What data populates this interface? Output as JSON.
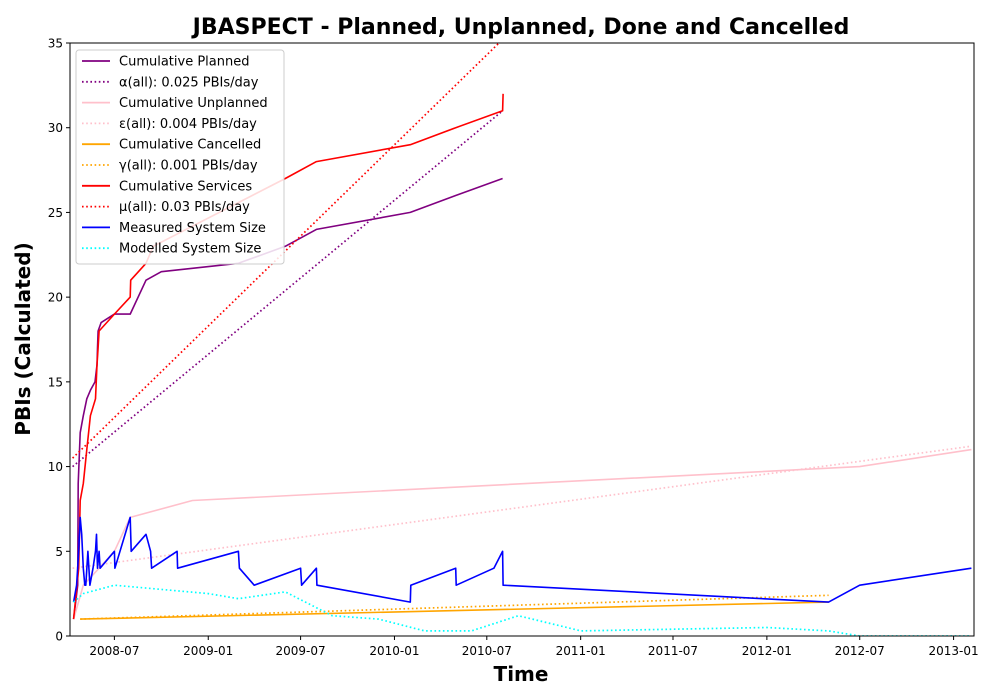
{
  "chart_data": {
    "type": "line",
    "title": "JBASPECT - Planned, Unplanned, Done  and Cancelled",
    "xlabel": "Time",
    "ylabel": "PBIs (Calculated)",
    "xlim": [
      "2008-04-05",
      "2013-02-10"
    ],
    "ylim": [
      0,
      35
    ],
    "x_ticks": [
      "2008-07",
      "2009-01",
      "2009-07",
      "2010-01",
      "2010-07",
      "2011-01",
      "2011-07",
      "2012-01",
      "2012-07",
      "2013-01"
    ],
    "y_ticks": [
      0,
      5,
      10,
      15,
      20,
      25,
      30,
      35
    ],
    "grid": false,
    "legend_position": "top-left",
    "series": [
      {
        "name": "Cumulative Planned",
        "color": "#800080",
        "style": "solid",
        "x": [
          "2008-04-12",
          "2008-04-20",
          "2008-04-21",
          "2008-04-25",
          "2008-05-01",
          "2008-05-08",
          "2008-05-15",
          "2008-05-24",
          "2008-05-28",
          "2008-05-29",
          "2008-05-30",
          "2008-06-05",
          "2008-07-01",
          "2008-08-01",
          "2008-09-01",
          "2008-10-01",
          "2009-03-01",
          "2009-06-01",
          "2009-08-01",
          "2010-02-01",
          "2010-05-01",
          "2010-08-01"
        ],
        "y": [
          1,
          3,
          9,
          12,
          13,
          14,
          14.5,
          15,
          16,
          17,
          18,
          18.5,
          19,
          19,
          21,
          21.5,
          22,
          23,
          24,
          25,
          26,
          27
        ]
      },
      {
        "name": "α(all): 0.025 PBIs/day",
        "color": "#800080",
        "style": "dotted",
        "x": [
          "2008-04-10",
          "2010-08-01"
        ],
        "y": [
          10,
          31
        ]
      },
      {
        "name": "Cumulative Unplanned",
        "color": "#ffc0cb",
        "style": "solid",
        "x": [
          "2008-04-12",
          "2008-05-01",
          "2008-06-01",
          "2008-07-01",
          "2008-08-01",
          "2008-12-01",
          "2012-07-01",
          "2013-02-05"
        ],
        "y": [
          1,
          3,
          4,
          5,
          7,
          8,
          10,
          11
        ]
      },
      {
        "name": "ε(all): 0.004 PBIs/day",
        "color": "#ffc0cb",
        "style": "dotted",
        "x": [
          "2008-04-10",
          "2013-02-05"
        ],
        "y": [
          4,
          11.2
        ]
      },
      {
        "name": "Cumulative Cancelled",
        "color": "#ffa500",
        "style": "solid",
        "x": [
          "2008-04-25",
          "2012-05-01"
        ],
        "y": [
          1,
          2
        ]
      },
      {
        "name": "γ(all): 0.001 PBIs/day",
        "color": "#ffa500",
        "style": "dotted",
        "x": [
          "2008-04-25",
          "2012-05-01"
        ],
        "y": [
          1,
          2.4
        ]
      },
      {
        "name": "Cumulative Services",
        "color": "#ff0000",
        "style": "solid",
        "x": [
          "2008-04-12",
          "2008-04-22",
          "2008-04-25",
          "2008-05-01",
          "2008-05-08",
          "2008-05-15",
          "2008-05-25",
          "2008-05-28",
          "2008-05-30",
          "2008-06-01",
          "2008-07-01",
          "2008-08-01",
          "2008-08-02",
          "2008-09-01",
          "2008-09-15",
          "2009-06-01",
          "2009-08-01",
          "2010-02-01",
          "2010-05-01",
          "2010-08-01",
          "2010-08-02"
        ],
        "y": [
          1,
          4,
          8,
          9,
          11,
          13,
          14,
          16,
          17,
          18,
          19,
          20,
          21,
          22,
          23,
          27,
          28,
          29,
          30,
          31,
          32
        ]
      },
      {
        "name": "μ(all): 0.03 PBIs/day",
        "color": "#ff0000",
        "style": "dotted",
        "x": [
          "2008-04-10",
          "2010-07-25"
        ],
        "y": [
          10.5,
          35
        ]
      },
      {
        "name": "Measured System Size",
        "color": "#0000ff",
        "style": "solid",
        "x": [
          "2008-04-12",
          "2008-04-18",
          "2008-04-22",
          "2008-04-25",
          "2008-04-28",
          "2008-05-01",
          "2008-05-04",
          "2008-05-06",
          "2008-05-10",
          "2008-05-14",
          "2008-05-20",
          "2008-05-25",
          "2008-05-27",
          "2008-05-29",
          "2008-06-01",
          "2008-06-03",
          "2008-07-01",
          "2008-07-02",
          "2008-08-01",
          "2008-08-03",
          "2008-09-01",
          "2008-09-10",
          "2008-09-12",
          "2008-11-01",
          "2008-11-02",
          "2009-03-01",
          "2009-03-03",
          "2009-04-01",
          "2009-07-01",
          "2009-07-03",
          "2009-08-01",
          "2009-08-02",
          "2010-02-01",
          "2010-02-02",
          "2010-05-01",
          "2010-05-02",
          "2010-07-15",
          "2010-08-01",
          "2010-08-02",
          "2012-05-01",
          "2012-07-01",
          "2013-02-05"
        ],
        "y": [
          2,
          3,
          5,
          7,
          6,
          4,
          3,
          3,
          5,
          3,
          4,
          5,
          6,
          4,
          5,
          4,
          5,
          4,
          7,
          5,
          6,
          5,
          4,
          5,
          4,
          5,
          4,
          3,
          4,
          3,
          4,
          3,
          2,
          3,
          4,
          3,
          4,
          5,
          3,
          2,
          3,
          4
        ]
      },
      {
        "name": "Modelled System Size",
        "color": "#00ffff",
        "style": "dotted",
        "x": [
          "2008-04-12",
          "2008-05-01",
          "2008-07-01",
          "2009-01-01",
          "2009-03-01",
          "2009-06-01",
          "2009-09-01",
          "2009-12-01",
          "2010-03-01",
          "2010-06-01",
          "2010-09-01",
          "2011-01-01",
          "2011-07-01",
          "2012-01-01",
          "2012-05-01",
          "2012-07-01",
          "2013-02-05"
        ],
        "y": [
          2,
          2.5,
          3,
          2.5,
          2.2,
          2.6,
          1.2,
          1,
          0.3,
          0.3,
          1.2,
          0.3,
          0.4,
          0.5,
          0.3,
          0,
          0
        ]
      }
    ]
  }
}
